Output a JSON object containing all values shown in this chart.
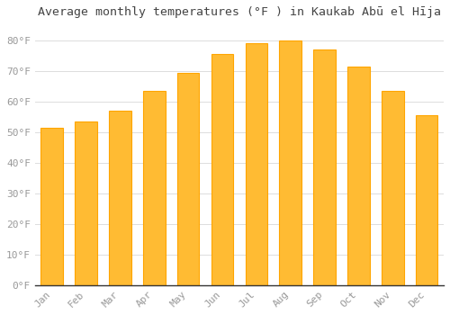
{
  "title": "Average monthly temperatures (°F ) in Kaukab Abū el Hīja",
  "months": [
    "Jan",
    "Feb",
    "Mar",
    "Apr",
    "May",
    "Jun",
    "Jul",
    "Aug",
    "Sep",
    "Oct",
    "Nov",
    "Dec"
  ],
  "values": [
    51.5,
    53.5,
    57.0,
    63.5,
    69.5,
    75.5,
    79.0,
    80.0,
    77.0,
    71.5,
    63.5,
    55.5
  ],
  "bar_color": "#FFBB33",
  "bar_edge_color": "#FFA500",
  "bg_color": "#FFFFFF",
  "grid_color": "#DDDDDD",
  "ylim": [
    0,
    85
  ],
  "ytick_values": [
    0,
    10,
    20,
    30,
    40,
    50,
    60,
    70,
    80
  ],
  "title_fontsize": 9.5,
  "tick_fontsize": 8,
  "label_color": "#999999",
  "figsize": [
    5.0,
    3.5
  ],
  "dpi": 100
}
